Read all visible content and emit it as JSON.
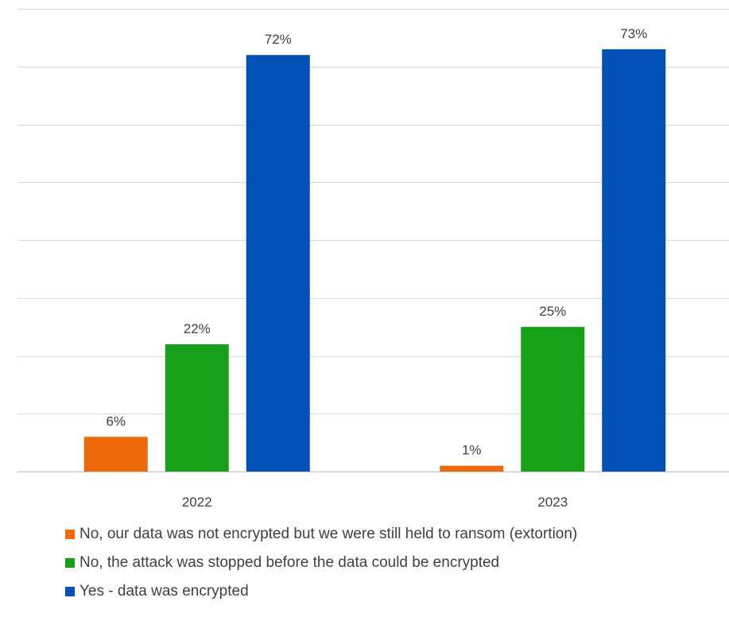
{
  "chart_data": {
    "type": "bar",
    "categories": [
      "2022",
      "2023"
    ],
    "series": [
      {
        "name": "No, our data was not encrypted but we were still held to ransom (extortion)",
        "values": [
          6,
          1
        ],
        "labels": [
          "6%",
          "1%"
        ],
        "color": "#ED6A0B"
      },
      {
        "name": "No, the attack was stopped before the data could be encrypted",
        "values": [
          22,
          25
        ],
        "labels": [
          "22%",
          "25%"
        ],
        "color": "#17A01A"
      },
      {
        "name": "Yes - data was encrypted",
        "values": [
          72,
          73
        ],
        "labels": [
          "72%",
          "73%"
        ],
        "color": "#0050B6"
      }
    ],
    "ylim": [
      0,
      80
    ],
    "grid": true,
    "legend_position": "bottom"
  }
}
